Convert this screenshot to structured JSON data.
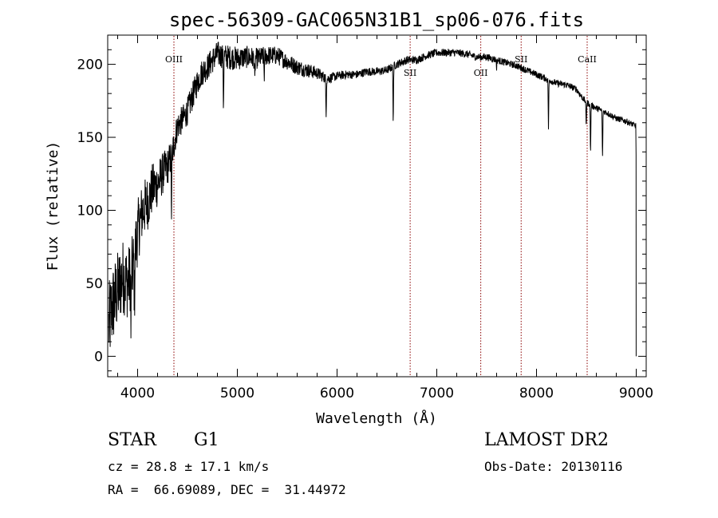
{
  "chart_data": {
    "type": "line",
    "title": "spec-56309-GAC065N31B1_sp06-076.fits",
    "xlabel": "Wavelength (Å)",
    "ylabel": "Flux (relative)",
    "xlim": [
      3700,
      9100
    ],
    "ylim": [
      -14,
      220
    ],
    "xticks": [
      4000,
      5000,
      6000,
      7000,
      8000,
      9000
    ],
    "yticks": [
      0,
      50,
      100,
      150,
      200
    ],
    "grid": false,
    "line_color": "#000000",
    "marker_color": "#8b0000",
    "continuum": [
      [
        3710,
        20
      ],
      [
        3750,
        35
      ],
      [
        3800,
        45
      ],
      [
        3850,
        55
      ],
      [
        3900,
        50
      ],
      [
        3950,
        60
      ],
      [
        4000,
        85
      ],
      [
        4050,
        100
      ],
      [
        4100,
        105
      ],
      [
        4150,
        115
      ],
      [
        4200,
        118
      ],
      [
        4250,
        125
      ],
      [
        4300,
        130
      ],
      [
        4350,
        140
      ],
      [
        4400,
        158
      ],
      [
        4450,
        162
      ],
      [
        4500,
        168
      ],
      [
        4550,
        178
      ],
      [
        4600,
        188
      ],
      [
        4650,
        195
      ],
      [
        4700,
        198
      ],
      [
        4750,
        203
      ],
      [
        4800,
        207
      ],
      [
        4900,
        205
      ],
      [
        5000,
        204
      ],
      [
        5100,
        205
      ],
      [
        5200,
        204
      ],
      [
        5300,
        206
      ],
      [
        5400,
        206
      ],
      [
        5500,
        202
      ],
      [
        5600,
        198
      ],
      [
        5700,
        196
      ],
      [
        5800,
        194
      ],
      [
        5900,
        190
      ],
      [
        6000,
        192
      ],
      [
        6100,
        193
      ],
      [
        6200,
        193
      ],
      [
        6300,
        195
      ],
      [
        6400,
        195
      ],
      [
        6500,
        196
      ],
      [
        6600,
        200
      ],
      [
        6700,
        203
      ],
      [
        6800,
        203
      ],
      [
        6900,
        206
      ],
      [
        7000,
        208
      ],
      [
        7100,
        208
      ],
      [
        7200,
        208
      ],
      [
        7300,
        207
      ],
      [
        7400,
        205
      ],
      [
        7500,
        205
      ],
      [
        7600,
        203
      ],
      [
        7700,
        201
      ],
      [
        7800,
        199
      ],
      [
        7900,
        196
      ],
      [
        8000,
        193
      ],
      [
        8100,
        190
      ],
      [
        8200,
        187
      ],
      [
        8300,
        186
      ],
      [
        8400,
        183
      ],
      [
        8450,
        178
      ],
      [
        8500,
        174
      ],
      [
        8600,
        170
      ],
      [
        8700,
        167
      ],
      [
        8800,
        163
      ],
      [
        8900,
        161
      ],
      [
        8990,
        158
      ]
    ],
    "noise": [
      [
        3700,
        30
      ],
      [
        4000,
        22
      ],
      [
        4400,
        10
      ],
      [
        4800,
        9
      ],
      [
        5700,
        5
      ],
      [
        6000,
        3
      ],
      [
        9000,
        2
      ]
    ],
    "absorption_features": [
      {
        "wavelength": 3933,
        "depth": 40
      },
      {
        "wavelength": 3968,
        "depth": 30
      },
      {
        "wavelength": 4340,
        "depth": 40
      },
      {
        "wavelength": 4861,
        "depth": 33
      },
      {
        "wavelength": 5175,
        "depth": 18
      },
      {
        "wavelength": 5270,
        "depth": 12
      },
      {
        "wavelength": 5890,
        "depth": 23
      },
      {
        "wavelength": 6563,
        "depth": 37
      },
      {
        "wavelength": 7600,
        "depth": 5
      },
      {
        "wavelength": 8120,
        "depth": 33
      },
      {
        "wavelength": 8498,
        "depth": 16
      },
      {
        "wavelength": 8542,
        "depth": 33
      },
      {
        "wavelength": 8662,
        "depth": 33
      }
    ],
    "spectral_lines": [
      {
        "label": "OIII",
        "wavelength": 4364,
        "label_position": "top"
      },
      {
        "label": "SII",
        "wavelength": 6733,
        "label_position": "middle"
      },
      {
        "label": "OII",
        "wavelength": 7441,
        "label_position": "middle"
      },
      {
        "label": "SII",
        "wavelength": 7846,
        "label_position": "top"
      },
      {
        "label": "CaII",
        "wavelength": 8508,
        "label_position": "top"
      }
    ]
  },
  "info": {
    "object_class": "STAR",
    "subclass": "G1",
    "survey": "LAMOST DR2",
    "redshift_line": "cz = 28.8 ± 17.1 km/s",
    "obs_date_line": "Obs-Date: 20130116",
    "coords_line": "RA =  66.69089, DEC =  31.44972"
  }
}
